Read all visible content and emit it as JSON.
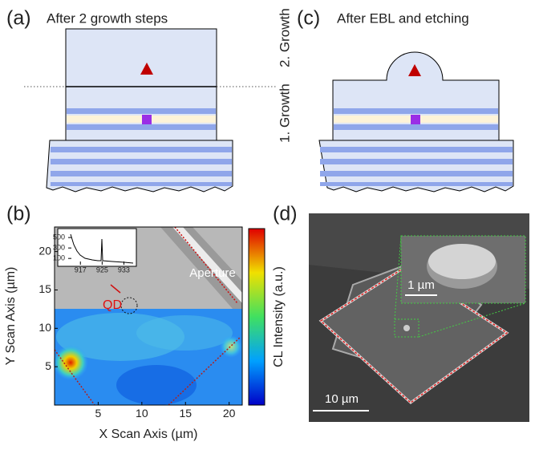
{
  "panel_a": {
    "label": "(a)",
    "title": "After 2 growth steps",
    "growth_1": "1. Growth",
    "growth_2": "2. Growth"
  },
  "panel_c": {
    "label": "(c)",
    "title": "After EBL and etching"
  },
  "chart_data": {
    "type": "heatmap",
    "label": "(b)",
    "x_label": "X Scan Axis (µm)",
    "y_label": "Y Scan Axis (µm)",
    "colorbar_label": "CL Intensity (a.u.)",
    "xlim": [
      0,
      21.5
    ],
    "ylim": [
      0,
      23.2
    ],
    "xticks": [
      5,
      10,
      15,
      20
    ],
    "yticks": [
      5,
      10,
      15,
      20
    ],
    "annotations": [
      "Aperture",
      "QD"
    ],
    "inset": {
      "xlim": [
        912.5,
        937
      ],
      "ylim": [
        -20,
        640
      ],
      "xticks": [
        917,
        925,
        933
      ],
      "yticks": [
        100,
        300,
        500
      ]
    }
  },
  "panel_d": {
    "label": "(d)",
    "scale_bars": [
      "1 µm",
      "10 µm"
    ]
  }
}
